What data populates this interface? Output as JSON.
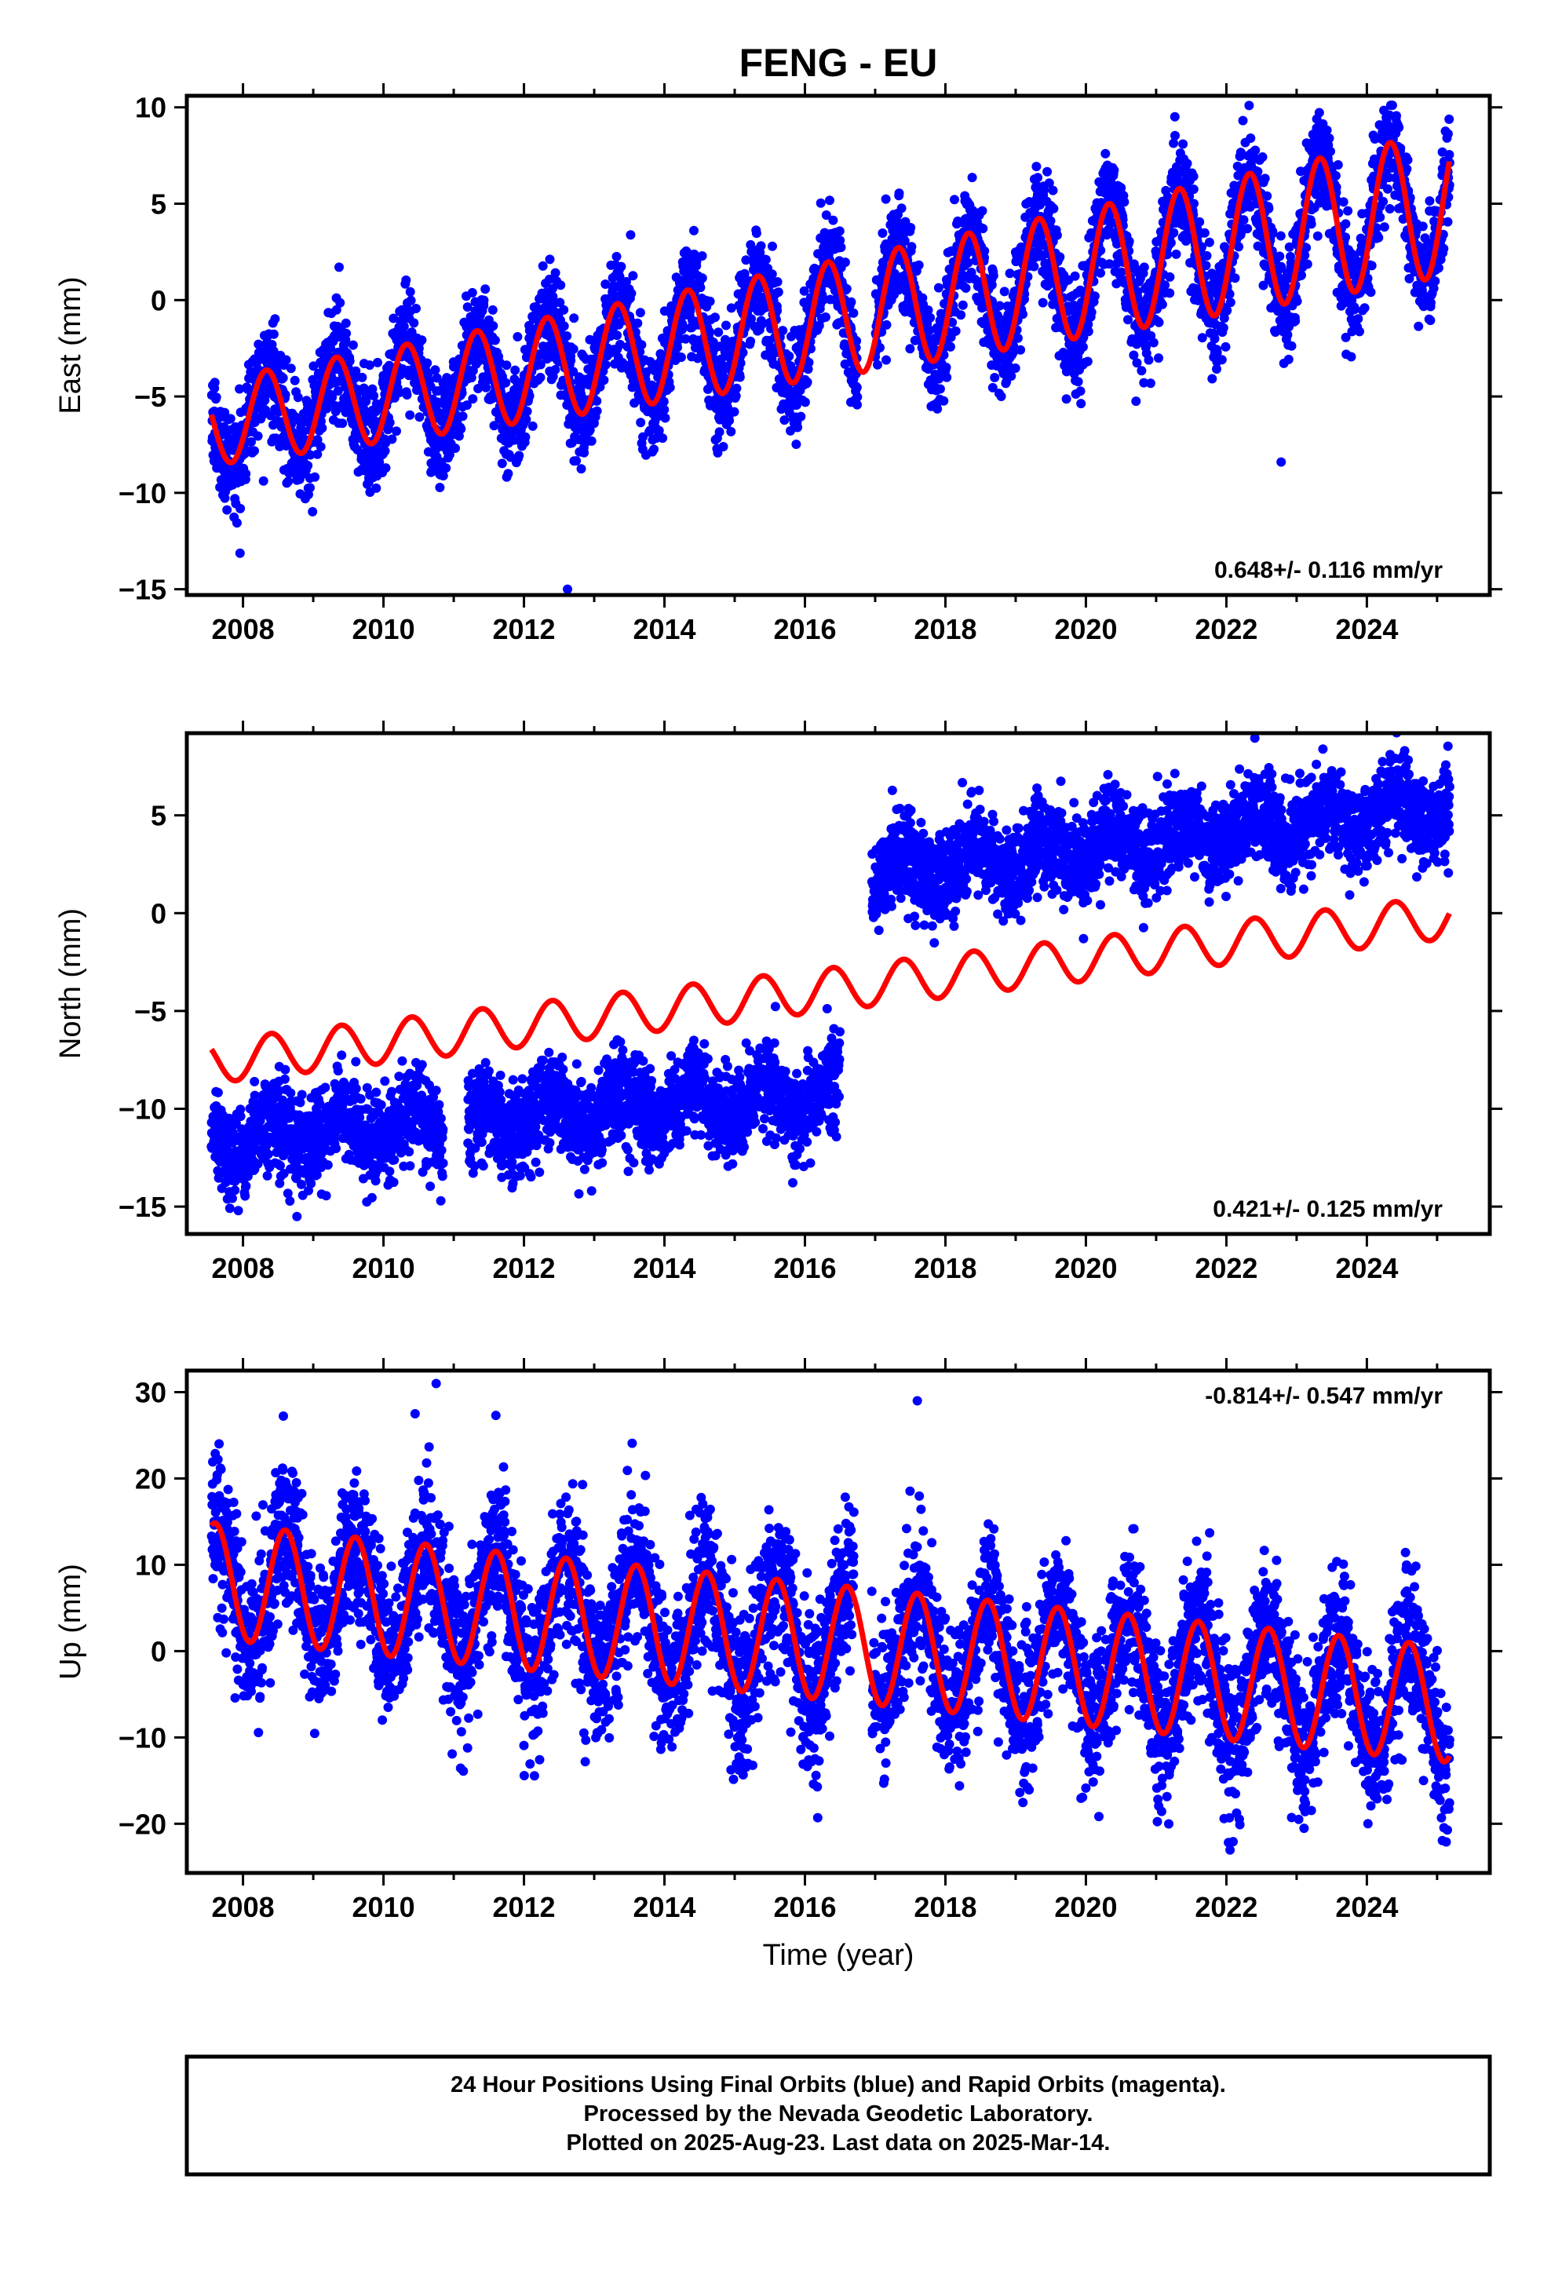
{
  "chart_data": {
    "type": "scatter",
    "title": "FENG - EU",
    "xlabel": "Time (year)",
    "xlim": [
      2007.2,
      2025.75
    ],
    "x_ticks": [
      "2008",
      "2010",
      "2012",
      "2014",
      "2016",
      "2018",
      "2020",
      "2022",
      "2024"
    ],
    "series_colors": {
      "observations": "#0000ff",
      "model": "#ff0000"
    },
    "panels": [
      {
        "component": "east",
        "ylabel": "East (mm)",
        "ylim": [
          -15.3,
          10.6
        ],
        "y_ticks": [
          "10",
          "5",
          "0",
          "−5",
          "−10",
          "−15"
        ],
        "rate_text": "0.648+/- 0.116 mm/yr",
        "rate_position": "bottom-right",
        "model": {
          "start": 2007.55,
          "end": 2025.18,
          "t0": 2016.36,
          "offset": -1.0,
          "slope": 0.648,
          "trend_curve": 0.0045,
          "amplitude": 3.0,
          "amp_growth": 0.03,
          "phase_peak": 0.33
        },
        "noise_sd": 1.35,
        "outliers": [
          [
            2012.62,
            -15.0
          ],
          [
            2022.78,
            -8.4
          ]
        ],
        "gaps": [
          [
            2016.75,
            2017.0
          ]
        ]
      },
      {
        "component": "north",
        "ylabel": "North (mm)",
        "ylim": [
          -16.4,
          9.2
        ],
        "y_ticks": [
          "5",
          "0",
          "−5",
          "−10",
          "−15"
        ],
        "rate_text": "0.421+/- 0.125 mm/yr",
        "rate_position": "bottom-right",
        "model": {
          "start": 2007.55,
          "end": 2025.18,
          "t0": 2016.36,
          "offset": -3.9,
          "slope": 0.421,
          "trend_curve": 0.0,
          "amplitude": 1.1,
          "amp_growth": 0.0,
          "phase_peak": 0.4
        },
        "data_levels": [
          {
            "from": 2007.55,
            "to": 2016.5,
            "mean": -10.4,
            "slope": 0.25,
            "t0": 2012.0
          },
          {
            "from": 2016.95,
            "to": 2025.18,
            "mean": 3.7,
            "slope": 0.42,
            "t0": 2021.0
          }
        ],
        "noise_sd": 1.15,
        "gaps": [
          [
            2010.85,
            2011.2
          ],
          [
            2016.5,
            2016.95
          ]
        ]
      },
      {
        "component": "up",
        "ylabel": "Up (mm)",
        "ylim": [
          -25.7,
          32.5
        ],
        "y_ticks": [
          "30",
          "20",
          "10",
          "0",
          "−10",
          "−20"
        ],
        "rate_text": "-0.814+/- 0.547 mm/yr",
        "rate_position": "top-right",
        "model": {
          "start": 2007.55,
          "end": 2025.18,
          "t0": 2016.36,
          "offset": 1.0,
          "slope": -0.814,
          "trend_curve": 0.0,
          "amplitude": 6.7,
          "amp_growth": 0.0,
          "phase_peak": 0.6
        },
        "noise_sd": 4.3,
        "outliers": [
          [
            2010.75,
            31.0
          ],
          [
            2010.45,
            27.5
          ],
          [
            2011.6,
            27.3
          ],
          [
            2017.6,
            29.0
          ]
        ],
        "gaps": [
          [
            2016.7,
            2016.95
          ]
        ]
      }
    ]
  },
  "footer": {
    "line1": "24 Hour Positions Using Final Orbits (blue) and Rapid Orbits (magenta).",
    "line2": "Processed by the Nevada Geodetic Laboratory.",
    "line3": "Plotted on 2025-Aug-23. Last data on 2025-Mar-14."
  }
}
